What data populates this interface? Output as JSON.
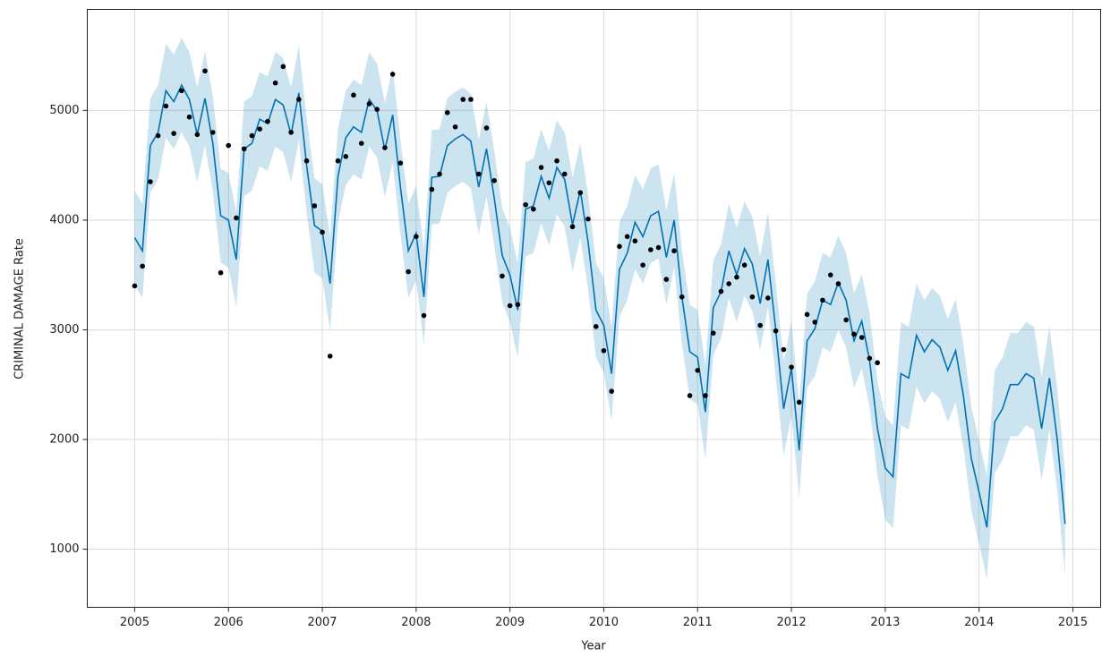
{
  "chart_data": {
    "type": "forecast",
    "xlabel": "Year",
    "ylabel": "CRIMINAL DAMAGE Rate",
    "xlim": [
      2004.495,
      2015.296
    ],
    "ylim": [
      470,
      5921
    ],
    "xticks": [
      2005,
      2006,
      2007,
      2008,
      2009,
      2010,
      2011,
      2012,
      2013,
      2014,
      2015
    ],
    "yticks": [
      1000,
      2000,
      3000,
      4000,
      5000
    ],
    "grid": true,
    "line_color": "#0072b2",
    "band_color": "#0072b2",
    "point_color": "#000000",
    "x": [
      2005,
      2005.083,
      2005.167,
      2005.25,
      2005.333,
      2005.417,
      2005.5,
      2005.583,
      2005.667,
      2005.75,
      2005.833,
      2005.917,
      2006,
      2006.083,
      2006.167,
      2006.25,
      2006.333,
      2006.417,
      2006.5,
      2006.583,
      2006.667,
      2006.75,
      2006.833,
      2006.917,
      2007,
      2007.083,
      2007.167,
      2007.25,
      2007.333,
      2007.417,
      2007.5,
      2007.583,
      2007.667,
      2007.75,
      2007.833,
      2007.917,
      2008,
      2008.083,
      2008.167,
      2008.25,
      2008.333,
      2008.417,
      2008.5,
      2008.583,
      2008.667,
      2008.75,
      2008.833,
      2008.917,
      2009,
      2009.083,
      2009.167,
      2009.25,
      2009.333,
      2009.417,
      2009.5,
      2009.583,
      2009.667,
      2009.75,
      2009.833,
      2009.917,
      2010,
      2010.083,
      2010.167,
      2010.25,
      2010.333,
      2010.417,
      2010.5,
      2010.583,
      2010.667,
      2010.75,
      2010.833,
      2010.917,
      2011,
      2011.083,
      2011.167,
      2011.25,
      2011.333,
      2011.417,
      2011.5,
      2011.583,
      2011.667,
      2011.75,
      2011.833,
      2011.917,
      2012,
      2012.083,
      2012.167,
      2012.25,
      2012.333,
      2012.417,
      2012.5,
      2012.583,
      2012.667,
      2012.75,
      2012.833,
      2012.917,
      2013,
      2013.083,
      2013.167,
      2013.25,
      2013.333,
      2013.417,
      2013.5,
      2013.583,
      2013.667,
      2013.75,
      2013.833,
      2013.917,
      2014,
      2014.083,
      2014.167,
      2014.25,
      2014.333,
      2014.417,
      2014.5,
      2014.583,
      2014.667,
      2014.75,
      2014.833,
      2014.917
    ],
    "forecast": [
      3840,
      3720,
      4680,
      4800,
      5180,
      5080,
      5230,
      5100,
      4780,
      5110,
      4700,
      4040,
      4000,
      3640,
      4650,
      4700,
      4920,
      4880,
      5100,
      5050,
      4780,
      5160,
      4500,
      3950,
      3900,
      3420,
      4400,
      4750,
      4850,
      4800,
      5100,
      5000,
      4640,
      4960,
      4300,
      3720,
      3880,
      3300,
      4390,
      4400,
      4680,
      4740,
      4780,
      4720,
      4300,
      4650,
      4200,
      3680,
      3500,
      3180,
      4100,
      4130,
      4400,
      4200,
      4480,
      4370,
      3960,
      4270,
      3800,
      3180,
      3040,
      2600,
      3550,
      3700,
      3980,
      3850,
      4040,
      4080,
      3660,
      4000,
      3300,
      2800,
      2750,
      2250,
      3200,
      3350,
      3720,
      3500,
      3740,
      3600,
      3240,
      3640,
      3000,
      2280,
      2650,
      1900,
      2900,
      3010,
      3270,
      3230,
      3430,
      3270,
      2900,
      3080,
      2720,
      2100,
      1740,
      1660,
      2600,
      2560,
      2950,
      2800,
      2910,
      2840,
      2630,
      2810,
      2400,
      1830,
      1520,
      1200,
      2160,
      2280,
      2500,
      2500,
      2600,
      2560,
      2100,
      2560,
      2000,
      1230
    ],
    "upper": [
      4270,
      4150,
      5110,
      5230,
      5610,
      5510,
      5660,
      5530,
      5210,
      5540,
      5130,
      4470,
      4430,
      4070,
      5080,
      5130,
      5350,
      5310,
      5530,
      5480,
      5210,
      5590,
      4930,
      4380,
      4330,
      3850,
      4830,
      5180,
      5280,
      5230,
      5530,
      5430,
      5070,
      5390,
      4730,
      4150,
      4310,
      3730,
      4820,
      4830,
      5110,
      5170,
      5210,
      5150,
      4730,
      5080,
      4630,
      4110,
      3930,
      3610,
      4530,
      4560,
      4830,
      4630,
      4910,
      4800,
      4390,
      4700,
      4230,
      3610,
      3470,
      3030,
      3980,
      4130,
      4410,
      4280,
      4470,
      4510,
      4090,
      4430,
      3730,
      3230,
      3180,
      2680,
      3630,
      3780,
      4150,
      3930,
      4170,
      4030,
      3670,
      4070,
      3430,
      2710,
      3080,
      2330,
      3330,
      3440,
      3700,
      3660,
      3860,
      3700,
      3330,
      3510,
      3150,
      2530,
      2210,
      2130,
      3070,
      3030,
      3420,
      3270,
      3380,
      3310,
      3100,
      3280,
      2870,
      2300,
      1990,
      1670,
      2630,
      2750,
      2970,
      2970,
      3070,
      3030,
      2570,
      3030,
      2470,
      1700
    ],
    "lower": [
      3410,
      3290,
      4250,
      4370,
      4750,
      4650,
      4800,
      4670,
      4350,
      4680,
      4270,
      3610,
      3570,
      3210,
      4220,
      4270,
      4490,
      4450,
      4670,
      4620,
      4350,
      4730,
      4070,
      3520,
      3470,
      2990,
      3970,
      4320,
      4420,
      4370,
      4670,
      4570,
      4210,
      4530,
      3870,
      3290,
      3450,
      2870,
      3960,
      3970,
      4250,
      4310,
      4350,
      4290,
      3870,
      4220,
      3770,
      3250,
      3070,
      2750,
      3670,
      3700,
      3970,
      3770,
      4050,
      3940,
      3530,
      3840,
      3370,
      2750,
      2610,
      2170,
      3120,
      3270,
      3550,
      3420,
      3610,
      3650,
      3230,
      3570,
      2870,
      2370,
      2320,
      1820,
      2770,
      2920,
      3290,
      3070,
      3310,
      3170,
      2810,
      3210,
      2570,
      1850,
      2220,
      1470,
      2470,
      2580,
      2840,
      2800,
      3000,
      2840,
      2470,
      2650,
      2290,
      1670,
      1270,
      1190,
      2130,
      2090,
      2480,
      2330,
      2440,
      2370,
      2160,
      2340,
      1930,
      1360,
      1050,
      730,
      1690,
      1810,
      2030,
      2030,
      2130,
      2090,
      1630,
      2090,
      1530,
      760
    ],
    "observed": [
      3400,
      3580,
      4350,
      4770,
      5040,
      4790,
      5180,
      4940,
      4780,
      5360,
      4800,
      3520,
      4680,
      4020,
      4650,
      4770,
      4830,
      4900,
      5250,
      5400,
      4800,
      5100,
      4540,
      4130,
      3890,
      2760,
      4540,
      4580,
      5140,
      4700,
      5060,
      5010,
      4660,
      5330,
      4520,
      3530,
      3850,
      3130,
      4280,
      4420,
      4980,
      4850,
      5100,
      5100,
      4420,
      4840,
      4360,
      3490,
      3220,
      3230,
      4140,
      4100,
      4480,
      4340,
      4540,
      4420,
      3940,
      4250,
      4010,
      3030,
      2810,
      2440,
      3760,
      3850,
      3810,
      3590,
      3730,
      3750,
      3460,
      3720,
      3300,
      2400,
      2630,
      2400,
      2970,
      3350,
      3420,
      3480,
      3590,
      3300,
      3040,
      3290,
      2990,
      2820,
      2660,
      2340,
      3140,
      3070,
      3270,
      3500,
      3420,
      3090,
      2960,
      2930,
      2740,
      2700
    ]
  }
}
